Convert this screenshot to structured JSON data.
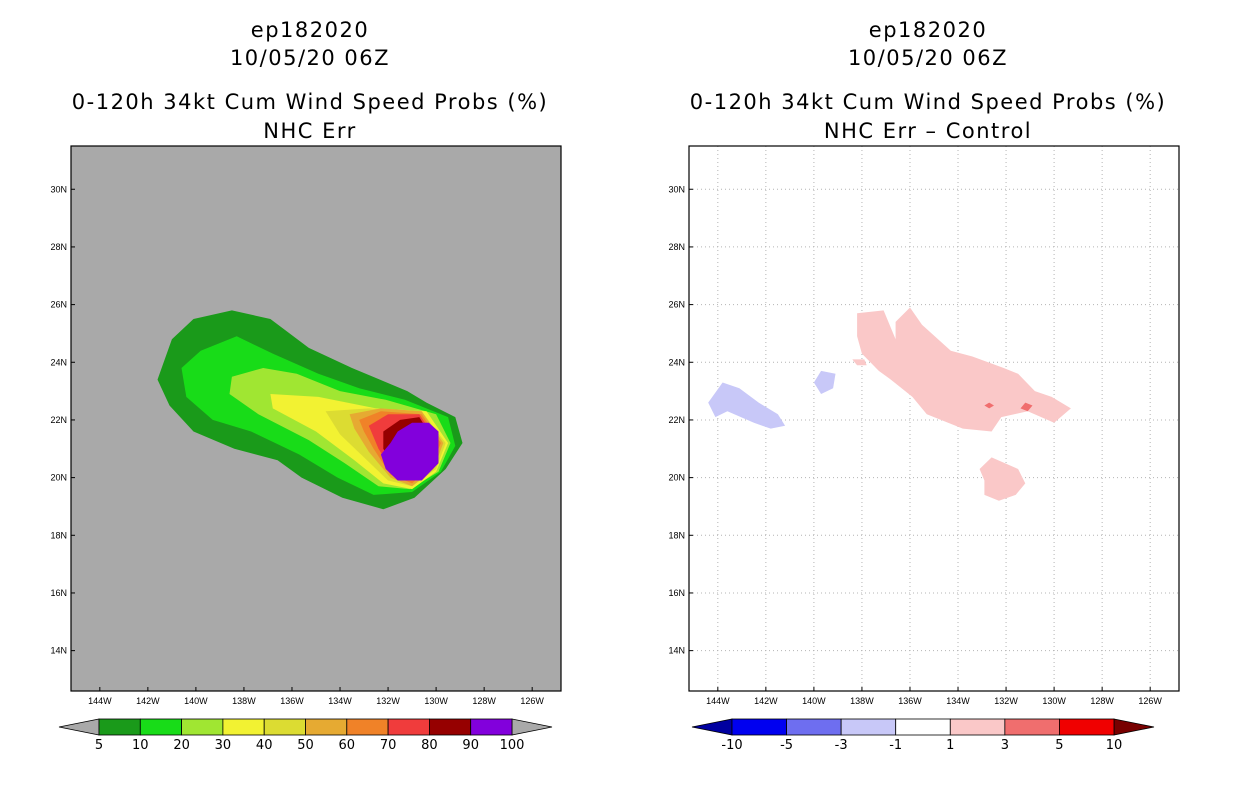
{
  "panels": [
    {
      "storm_id": "ep182020",
      "datetime": "10/05/20 06Z",
      "title": "0-120h 34kt Cum Wind Speed Probs (%)",
      "subtitle": "NHC Err"
    },
    {
      "storm_id": "ep182020",
      "datetime": "10/05/20 06Z",
      "title": "0-120h 34kt Cum Wind Speed Probs (%)",
      "subtitle": "NHC Err – Control"
    }
  ],
  "chart_data": [
    {
      "type": "heatmap",
      "title": "0-120h 34kt Cum Wind Speed Probs (%)",
      "subtitle": "NHC Err",
      "x_ticks": [
        "144W",
        "142W",
        "140W",
        "138W",
        "136W",
        "134W",
        "132W",
        "130W",
        "128W",
        "126W"
      ],
      "x_tick_values": [
        -144,
        -142,
        -140,
        -138,
        -136,
        -134,
        -132,
        -130,
        -128,
        -126
      ],
      "y_ticks": [
        "30N",
        "28N",
        "26N",
        "24N",
        "22N",
        "20N",
        "18N",
        "16N",
        "14N"
      ],
      "y_tick_values": [
        30,
        28,
        26,
        24,
        22,
        20,
        18,
        16,
        14
      ],
      "xlim": [
        -145.2,
        -124.8
      ],
      "ylim": [
        12.6,
        31.5
      ],
      "background_color": "#a9a9a9",
      "grid": false,
      "colorbar": {
        "labels": [
          "5",
          "10",
          "20",
          "30",
          "40",
          "50",
          "60",
          "70",
          "80",
          "90",
          "100"
        ],
        "colors": [
          "#1a9a1a",
          "#18dc18",
          "#a0e632",
          "#f2f232",
          "#dcdc32",
          "#e6aa32",
          "#f08228",
          "#f03c3c",
          "#960000",
          "#8200dc"
        ],
        "extend_colors": [
          "#a9a9a9",
          "#a9a9a9"
        ]
      },
      "contours": [
        {
          "level": 5,
          "color": "#1a9a1a",
          "points": [
            [
              -140.1,
              25.5
            ],
            [
              -138.5,
              25.8
            ],
            [
              -136.9,
              25.5
            ],
            [
              -135.3,
              24.5
            ],
            [
              -133.5,
              23.8
            ],
            [
              -131.2,
              23.0
            ],
            [
              -130.4,
              22.6
            ],
            [
              -129.2,
              22.1
            ],
            [
              -128.9,
              21.2
            ],
            [
              -129.6,
              20.3
            ],
            [
              -130.9,
              19.3
            ],
            [
              -132.2,
              18.9
            ],
            [
              -133.9,
              19.3
            ],
            [
              -135.6,
              20.0
            ],
            [
              -136.6,
              20.6
            ],
            [
              -138.4,
              21.0
            ],
            [
              -140.1,
              21.6
            ],
            [
              -141.1,
              22.5
            ],
            [
              -141.6,
              23.4
            ],
            [
              -141.0,
              24.8
            ]
          ]
        },
        {
          "level": 10,
          "color": "#18dc18",
          "points": [
            [
              -139.8,
              24.4
            ],
            [
              -138.3,
              24.9
            ],
            [
              -136.8,
              24.3
            ],
            [
              -134.9,
              23.6
            ],
            [
              -133.2,
              23.1
            ],
            [
              -131.3,
              22.7
            ],
            [
              -129.5,
              22.1
            ],
            [
              -129.2,
              21.1
            ],
            [
              -129.8,
              20.2
            ],
            [
              -131.0,
              19.5
            ],
            [
              -132.6,
              19.4
            ],
            [
              -134.1,
              20.0
            ],
            [
              -135.7,
              20.8
            ],
            [
              -137.7,
              21.6
            ],
            [
              -139.3,
              22.0
            ],
            [
              -140.4,
              22.8
            ],
            [
              -140.6,
              23.8
            ]
          ]
        },
        {
          "level": 20,
          "color": "#a0e632",
          "points": [
            [
              -138.5,
              23.5
            ],
            [
              -137.2,
              23.8
            ],
            [
              -135.8,
              23.6
            ],
            [
              -134.0,
              23.0
            ],
            [
              -132.1,
              22.7
            ],
            [
              -130.0,
              22.2
            ],
            [
              -129.4,
              21.2
            ],
            [
              -129.9,
              20.2
            ],
            [
              -131.1,
              19.6
            ],
            [
              -132.4,
              19.7
            ],
            [
              -133.8,
              20.5
            ],
            [
              -135.3,
              21.3
            ],
            [
              -137.4,
              22.2
            ],
            [
              -138.6,
              22.9
            ]
          ]
        },
        {
          "level": 30,
          "color": "#f2f232",
          "points": [
            [
              -136.9,
              22.9
            ],
            [
              -134.9,
              22.8
            ],
            [
              -132.5,
              22.4
            ],
            [
              -130.4,
              22.3
            ],
            [
              -129.5,
              21.2
            ],
            [
              -130.0,
              20.2
            ],
            [
              -131.0,
              19.6
            ],
            [
              -132.2,
              19.8
            ],
            [
              -133.4,
              20.6
            ],
            [
              -135.0,
              21.6
            ],
            [
              -136.8,
              22.4
            ]
          ]
        },
        {
          "level": 40,
          "color": "#dcdc32",
          "points": [
            [
              -134.6,
              22.3
            ],
            [
              -132.8,
              22.4
            ],
            [
              -130.6,
              22.3
            ],
            [
              -129.6,
              21.2
            ],
            [
              -130.0,
              20.3
            ],
            [
              -131.0,
              19.7
            ],
            [
              -132.0,
              19.9
            ],
            [
              -133.0,
              20.7
            ],
            [
              -134.0,
              21.5
            ]
          ]
        },
        {
          "level": 50,
          "color": "#e6aa32",
          "points": [
            [
              -133.6,
              22.2
            ],
            [
              -132.3,
              22.4
            ],
            [
              -130.6,
              22.3
            ],
            [
              -129.7,
              21.2
            ],
            [
              -130.1,
              20.3
            ],
            [
              -131.0,
              19.7
            ],
            [
              -131.9,
              20.0
            ],
            [
              -132.8,
              20.9
            ],
            [
              -133.4,
              21.7
            ]
          ]
        },
        {
          "level": 60,
          "color": "#f08228",
          "points": [
            [
              -133.2,
              22.0
            ],
            [
              -132.3,
              22.3
            ],
            [
              -130.6,
              22.2
            ],
            [
              -129.8,
              21.2
            ],
            [
              -130.2,
              20.4
            ],
            [
              -131.0,
              19.8
            ],
            [
              -131.9,
              20.1
            ],
            [
              -132.6,
              21.0
            ],
            [
              -133.0,
              21.6
            ]
          ]
        },
        {
          "level": 70,
          "color": "#f03c3c",
          "points": [
            [
              -132.8,
              21.8
            ],
            [
              -132.0,
              22.2
            ],
            [
              -130.7,
              22.2
            ],
            [
              -129.9,
              21.2
            ],
            [
              -130.2,
              20.4
            ],
            [
              -131.0,
              19.9
            ],
            [
              -131.8,
              20.2
            ],
            [
              -132.4,
              21.0
            ]
          ]
        },
        {
          "level": 80,
          "color": "#960000",
          "points": [
            [
              -132.2,
              21.6
            ],
            [
              -131.5,
              22.0
            ],
            [
              -130.7,
              22.1
            ],
            [
              -130.1,
              21.3
            ],
            [
              -130.3,
              20.4
            ],
            [
              -131.0,
              20.0
            ],
            [
              -131.7,
              20.3
            ],
            [
              -132.2,
              21.0
            ]
          ]
        },
        {
          "level": 90,
          "color": "#8200dc",
          "points": [
            [
              -131.6,
              21.6
            ],
            [
              -131.0,
              21.9
            ],
            [
              -130.3,
              21.9
            ],
            [
              -129.9,
              21.6
            ],
            [
              -129.9,
              20.5
            ],
            [
              -130.6,
              19.9
            ],
            [
              -131.6,
              19.9
            ],
            [
              -132.1,
              20.3
            ],
            [
              -132.3,
              20.8
            ],
            [
              -131.9,
              21.2
            ]
          ]
        }
      ]
    },
    {
      "type": "heatmap",
      "title": "0-120h 34kt Cum Wind Speed Probs (%)",
      "subtitle": "NHC Err – Control",
      "x_ticks": [
        "144W",
        "142W",
        "140W",
        "138W",
        "136W",
        "134W",
        "132W",
        "130W",
        "128W",
        "126W"
      ],
      "x_tick_values": [
        -144,
        -142,
        -140,
        -138,
        -136,
        -134,
        -132,
        -130,
        -128,
        -126
      ],
      "y_ticks": [
        "30N",
        "28N",
        "26N",
        "24N",
        "22N",
        "20N",
        "18N",
        "16N",
        "14N"
      ],
      "y_tick_values": [
        30,
        28,
        26,
        24,
        22,
        20,
        18,
        16,
        14
      ],
      "xlim": [
        -145.2,
        -124.8
      ],
      "ylim": [
        12.6,
        31.5
      ],
      "background_color": "#ffffff",
      "grid": true,
      "colorbar": {
        "labels": [
          "-10",
          "-5",
          "-3",
          "-1",
          "1",
          "3",
          "5",
          "10"
        ],
        "colors": [
          "#0000f0",
          "#6e6ef0",
          "#c8c8f8",
          "#ffffff",
          "#fac8c8",
          "#f06e6e",
          "#f00000"
        ],
        "extend_colors": [
          "#0000a0",
          "#780000"
        ]
      },
      "contours": [
        {
          "level": "-1 to -3",
          "color": "#c8c8f8",
          "points": [
            [
              -144.4,
              22.6
            ],
            [
              -143.8,
              23.3
            ],
            [
              -143.1,
              23.1
            ],
            [
              -142.3,
              22.6
            ],
            [
              -141.5,
              22.2
            ],
            [
              -141.2,
              21.8
            ],
            [
              -141.8,
              21.7
            ],
            [
              -142.5,
              21.9
            ],
            [
              -143.6,
              22.3
            ],
            [
              -144.1,
              22.1
            ]
          ]
        },
        {
          "level": "-1 to -3",
          "color": "#c8c8f8",
          "points": [
            [
              -140.0,
              23.3
            ],
            [
              -139.7,
              23.7
            ],
            [
              -139.1,
              23.6
            ],
            [
              -139.2,
              23.1
            ],
            [
              -139.7,
              22.9
            ]
          ]
        },
        {
          "level": "1 to 3",
          "color": "#fac8c8",
          "points": [
            [
              -138.2,
              25.7
            ],
            [
              -137.1,
              25.8
            ],
            [
              -136.6,
              24.8
            ],
            [
              -136.6,
              25.4
            ],
            [
              -136.0,
              25.9
            ],
            [
              -135.5,
              25.3
            ],
            [
              -134.3,
              24.4
            ],
            [
              -133.4,
              24.2
            ],
            [
              -132.1,
              23.8
            ],
            [
              -131.5,
              23.6
            ],
            [
              -130.8,
              23.0
            ],
            [
              -130.1,
              22.8
            ],
            [
              -129.3,
              22.4
            ],
            [
              -130.0,
              21.9
            ],
            [
              -131.1,
              22.3
            ],
            [
              -132.2,
              22.1
            ],
            [
              -132.6,
              21.6
            ],
            [
              -133.8,
              21.7
            ],
            [
              -135.3,
              22.2
            ],
            [
              -135.9,
              22.8
            ],
            [
              -136.8,
              23.4
            ],
            [
              -137.3,
              23.7
            ],
            [
              -138.0,
              24.3
            ],
            [
              -138.2,
              24.9
            ]
          ]
        },
        {
          "level": "1 to 3",
          "color": "#fac8c8",
          "points": [
            [
              -138.4,
              24.1
            ],
            [
              -137.9,
              24.1
            ],
            [
              -137.8,
              23.9
            ],
            [
              -138.2,
              23.9
            ]
          ]
        },
        {
          "level": "1 to 3",
          "color": "#fac8c8",
          "points": [
            [
              -132.6,
              20.7
            ],
            [
              -131.5,
              20.3
            ],
            [
              -131.2,
              19.8
            ],
            [
              -131.6,
              19.4
            ],
            [
              -132.3,
              19.2
            ],
            [
              -132.9,
              19.4
            ],
            [
              -132.9,
              19.9
            ],
            [
              -133.1,
              20.3
            ]
          ]
        },
        {
          "level": "3 to 5",
          "color": "#f06e6e",
          "points": [
            [
              -131.4,
              22.4
            ],
            [
              -131.2,
              22.6
            ],
            [
              -130.9,
              22.5
            ],
            [
              -131.1,
              22.3
            ]
          ]
        },
        {
          "level": "3 to 5",
          "color": "#f06e6e",
          "points": [
            [
              -132.9,
              22.5
            ],
            [
              -132.7,
              22.6
            ],
            [
              -132.5,
              22.5
            ],
            [
              -132.7,
              22.4
            ]
          ]
        }
      ]
    }
  ]
}
